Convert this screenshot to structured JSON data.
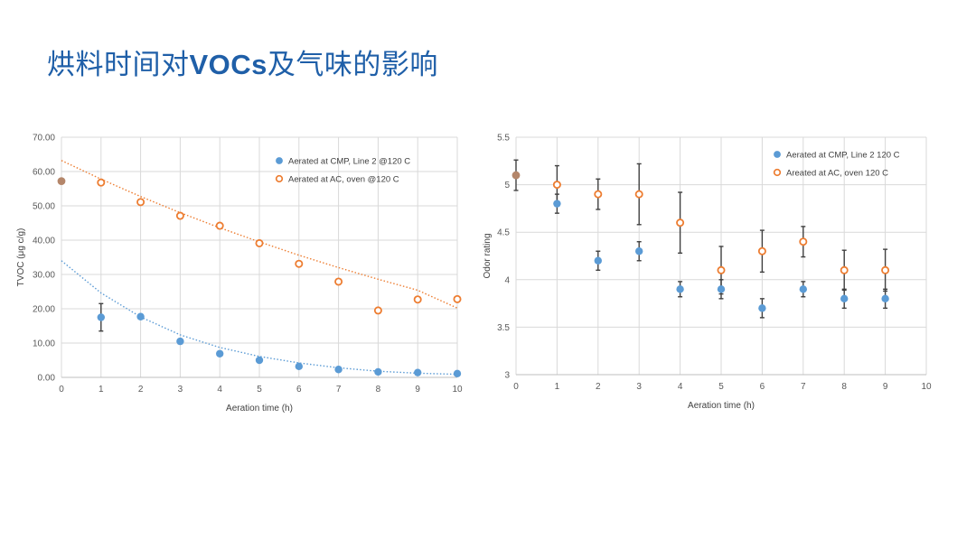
{
  "slide": {
    "title_prefix": "烘料时间对",
    "title_latin": "VOCs",
    "title_suffix": "及气味的影响"
  },
  "colors": {
    "title": "#1f5fa8",
    "cmp_series": "#5b9bd5",
    "ac_series": "#ed7d31",
    "error_bar": "#404040",
    "start_point": "#b4866a",
    "gridline": "#d9d9d9"
  },
  "chart_data": [
    {
      "type": "scatter",
      "xlabel": "Aeration time (h)",
      "ylabel": "TVOC (μg c/g)",
      "xlim": [
        0,
        10
      ],
      "ylim": [
        0,
        70
      ],
      "x_ticks": [
        "0",
        "1",
        "2",
        "3",
        "4",
        "5",
        "6",
        "7",
        "8",
        "9",
        "10"
      ],
      "y_ticks": [
        "0.00",
        "10.00",
        "20.00",
        "30.00",
        "40.00",
        "50.00",
        "60.00",
        "70.00"
      ],
      "grid": true,
      "legend_position": "top-right",
      "start_point": {
        "x": 0,
        "y": 57.2
      },
      "series": [
        {
          "name": "Aerated at CMP, Line 2 @120 C",
          "marker": "filled-circle",
          "x": [
            1,
            2,
            3,
            4,
            5,
            6,
            7,
            8,
            9,
            10
          ],
          "y": [
            17.5,
            17.7,
            10.5,
            6.9,
            5.0,
            3.2,
            2.3,
            1.6,
            1.4,
            1.1
          ],
          "error": [
            4.0,
            null,
            null,
            null,
            null,
            null,
            null,
            null,
            null,
            null
          ],
          "trendline": {
            "style": "dotted",
            "x": [
              0,
              1,
              2,
              3,
              4,
              5,
              6,
              7,
              8,
              9,
              10
            ],
            "y": [
              34.0,
              24.6,
              17.6,
              12.4,
              8.7,
              6.1,
              4.2,
              2.8,
              1.8,
              1.2,
              0.9
            ]
          }
        },
        {
          "name": "Aerated at AC, oven @120 C",
          "marker": "open-circle",
          "x": [
            1,
            2,
            3,
            4,
            5,
            6,
            7,
            8,
            9,
            10
          ],
          "y": [
            56.8,
            51.1,
            47.1,
            44.2,
            39.1,
            33.1,
            27.9,
            19.5,
            22.7,
            22.8
          ],
          "error": [
            null,
            null,
            null,
            null,
            null,
            null,
            null,
            null,
            null,
            null
          ],
          "trendline": {
            "style": "dotted",
            "x": [
              0,
              1,
              2,
              3,
              4,
              5,
              6,
              7,
              8,
              9,
              10
            ],
            "y": [
              63.2,
              57.8,
              52.7,
              48.0,
              43.6,
              39.5,
              35.6,
              32.0,
              28.6,
              25.4,
              20.2
            ]
          }
        }
      ]
    },
    {
      "type": "scatter",
      "xlabel": "Aeration time (h)",
      "ylabel": "Odor rating",
      "xlim": [
        0,
        10
      ],
      "ylim": [
        3,
        5.5
      ],
      "x_ticks": [
        "0",
        "1",
        "2",
        "3",
        "4",
        "5",
        "6",
        "7",
        "8",
        "9",
        "10"
      ],
      "y_ticks": [
        "3",
        "3.5",
        "4",
        "4.5",
        "5",
        "5.5"
      ],
      "grid": true,
      "legend_position": "top-right",
      "start_point": {
        "x": 0,
        "y": 5.1,
        "error": 0.16
      },
      "series": [
        {
          "name": "Aerated at CMP, Line 2 120 C",
          "marker": "filled-circle",
          "x": [
            1,
            2,
            3,
            4,
            5,
            6,
            7,
            8,
            9
          ],
          "y": [
            4.8,
            4.2,
            4.3,
            3.9,
            3.9,
            3.7,
            3.9,
            3.8,
            3.8
          ],
          "error": [
            0.1,
            0.1,
            0.1,
            0.08,
            0.1,
            0.1,
            0.08,
            0.1,
            0.1
          ]
        },
        {
          "name": "Areated at AC, oven 120 C",
          "marker": "open-circle",
          "x": [
            1,
            2,
            3,
            4,
            5,
            6,
            7,
            8,
            9
          ],
          "y": [
            5.0,
            4.9,
            4.9,
            4.6,
            4.1,
            4.3,
            4.4,
            4.1,
            4.1
          ],
          "error": [
            0.2,
            0.16,
            0.32,
            0.32,
            0.25,
            0.22,
            0.16,
            0.21,
            0.22
          ]
        }
      ]
    }
  ]
}
